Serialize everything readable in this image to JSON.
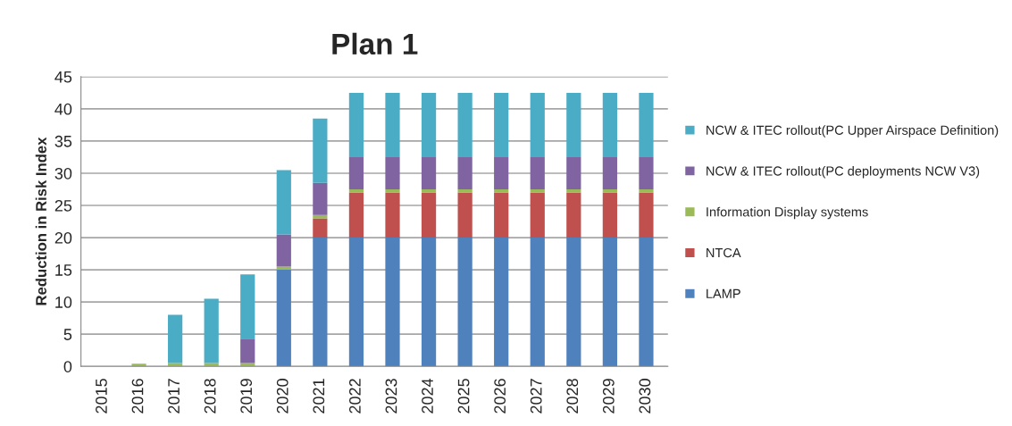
{
  "chart_data": {
    "type": "bar",
    "title": "Plan 1",
    "ylabel": "Reduction in Risk Index",
    "stacked": true,
    "categories": [
      "2015",
      "2016",
      "2017",
      "2018",
      "2019",
      "2020",
      "2021",
      "2022",
      "2023",
      "2024",
      "2025",
      "2026",
      "2027",
      "2028",
      "2029",
      "2030"
    ],
    "series": [
      {
        "name": "LAMP",
        "color": "#4f81bd",
        "values": [
          0,
          0,
          0,
          0,
          0,
          15,
          20,
          20,
          20,
          20,
          20,
          20,
          20,
          20,
          20,
          20
        ]
      },
      {
        "name": "NTCA",
        "color": "#c0504d",
        "values": [
          0,
          0,
          0,
          0,
          0,
          0,
          3,
          7,
          7,
          7,
          7,
          7,
          7,
          7,
          7,
          7
        ]
      },
      {
        "name": "Information Display systems",
        "color": "#9bbb59",
        "values": [
          0,
          0.4,
          0.5,
          0.5,
          0.5,
          0.5,
          0.5,
          0.5,
          0.5,
          0.5,
          0.5,
          0.5,
          0.5,
          0.5,
          0.5,
          0.5
        ]
      },
      {
        "name": "NCW & ITEC rollout(PC deployments NCW V3)",
        "color": "#8064a2",
        "values": [
          0,
          0,
          0,
          0,
          3.8,
          5,
          5,
          5,
          5,
          5,
          5,
          5,
          5,
          5,
          5,
          5
        ]
      },
      {
        "name": "NCW & ITEC rollout(PC Upper Airspace Definition)",
        "color": "#4bacc6",
        "values": [
          0,
          0,
          7.5,
          10,
          10,
          10,
          10,
          10,
          10,
          10,
          10,
          10,
          10,
          10,
          10,
          10
        ]
      }
    ],
    "ylim": [
      0,
      45
    ],
    "yticks": [
      0,
      5,
      10,
      15,
      20,
      25,
      30,
      35,
      40,
      45
    ],
    "grid": "y",
    "legend": "right"
  }
}
